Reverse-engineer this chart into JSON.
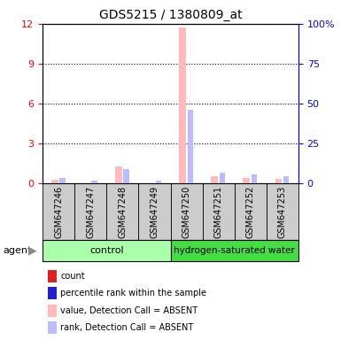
{
  "title": "GDS5215 / 1380809_at",
  "samples": [
    "GSM647246",
    "GSM647247",
    "GSM647248",
    "GSM647249",
    "GSM647250",
    "GSM647251",
    "GSM647252",
    "GSM647253"
  ],
  "count_values": [
    0.28,
    0.04,
    1.3,
    0.04,
    11.7,
    0.55,
    0.45,
    0.35
  ],
  "rank_values": [
    3.5,
    2.0,
    9.0,
    2.0,
    46.0,
    7.0,
    5.5,
    4.5
  ],
  "absent_flags": [
    true,
    true,
    true,
    true,
    true,
    true,
    true,
    true
  ],
  "ylim_left": [
    0,
    12
  ],
  "ylim_right": [
    0,
    100
  ],
  "yticks_left": [
    0,
    3,
    6,
    9,
    12
  ],
  "yticks_right": [
    0,
    25,
    50,
    75,
    100
  ],
  "ytick_labels_right": [
    "0",
    "25",
    "50",
    "75",
    "100%"
  ],
  "count_color": "#dd2222",
  "rank_color": "#2222cc",
  "absent_value_color": "#ffbbbb",
  "absent_rank_color": "#bbbbff",
  "ctrl_color": "#aaffaa",
  "h2_color": "#44dd44",
  "bar_bg_color": "#cccccc",
  "legend_items": [
    {
      "label": "count",
      "color": "#dd2222"
    },
    {
      "label": "percentile rank within the sample",
      "color": "#2222cc"
    },
    {
      "label": "value, Detection Call = ABSENT",
      "color": "#ffbbbb"
    },
    {
      "label": "rank, Detection Call = ABSENT",
      "color": "#bbbbff"
    }
  ]
}
